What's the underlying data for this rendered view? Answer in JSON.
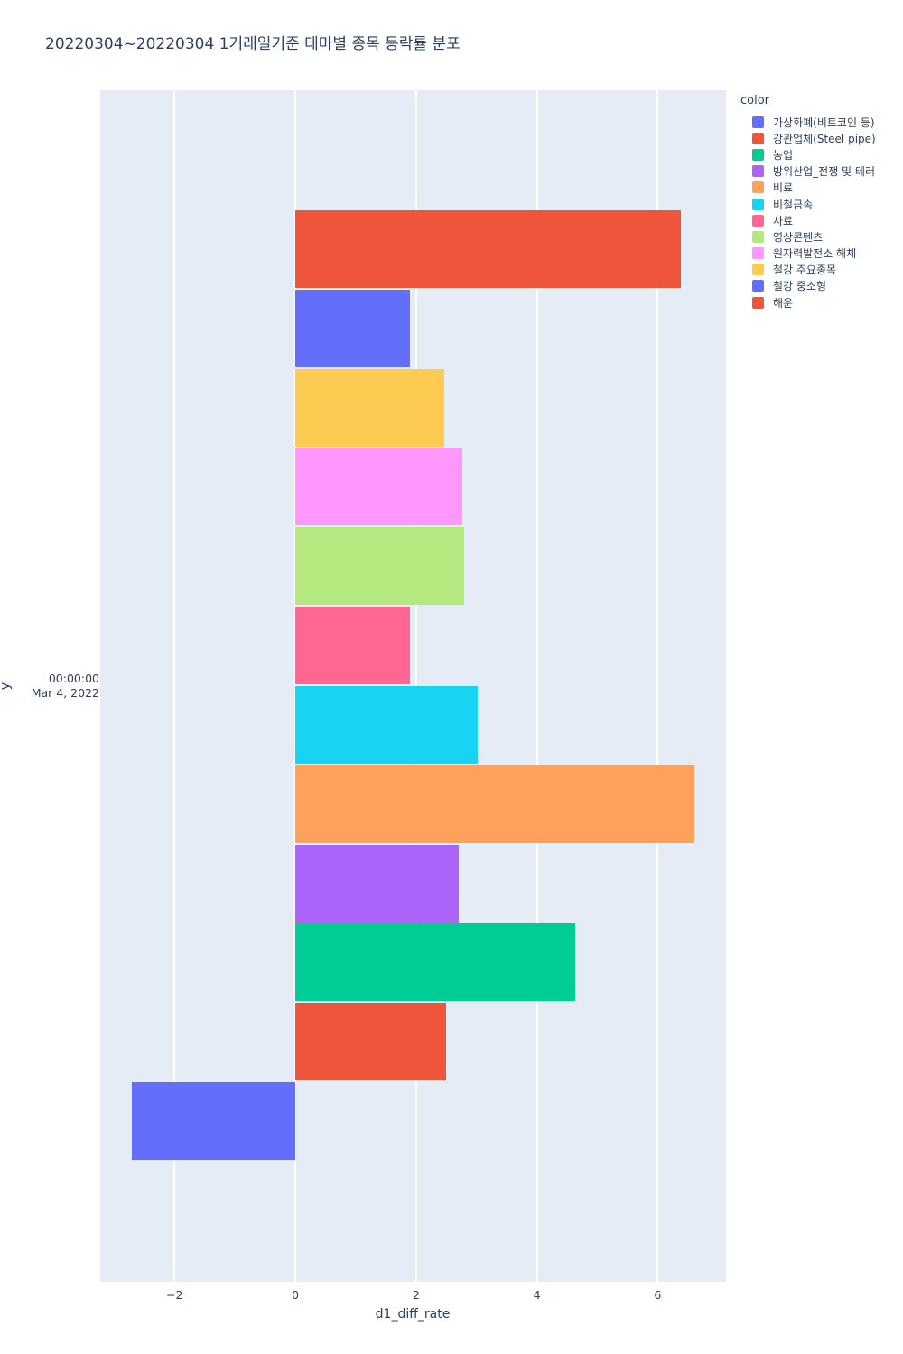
{
  "chart_data": {
    "type": "bar",
    "orientation": "horizontal",
    "title": "20220304~20220304 1거래일기준 테마별 종목 등락률 분포",
    "xlabel": "d1_diff_rate",
    "ylabel": "y",
    "legend_title": "color",
    "legend_position": "right",
    "grid": true,
    "y_tick_label_lines": [
      "00:00:00",
      "Mar 4, 2022"
    ],
    "xlim": [
      -3.23,
      7.13
    ],
    "xticks": [
      {
        "value": -2,
        "label": "−2"
      },
      {
        "value": 0,
        "label": "0"
      },
      {
        "value": 2,
        "label": "2"
      },
      {
        "value": 4,
        "label": "4"
      },
      {
        "value": 6,
        "label": "6"
      }
    ],
    "colors": {
      "paper_bg": "#FFFFFF",
      "plot_bg": "#E5ECF6",
      "grid": "#FFFFFF",
      "text": "#2A3F5F"
    },
    "series": [
      {
        "name": "가상화폐(비트코인 등)",
        "color": "#636EFA",
        "value": -2.7
      },
      {
        "name": "강관업체(Steel pipe)",
        "color": "#EF553B",
        "value": 2.49
      },
      {
        "name": "농업",
        "color": "#00CC96",
        "value": 4.63
      },
      {
        "name": "방위산업_전쟁 및 테러",
        "color": "#AB63FA",
        "value": 2.7
      },
      {
        "name": "비료",
        "color": "#FFA15A",
        "value": 6.61
      },
      {
        "name": "비철금속",
        "color": "#19D3F3",
        "value": 3.02
      },
      {
        "name": "사료",
        "color": "#FF6692",
        "value": 1.9
      },
      {
        "name": "영상콘텐츠",
        "color": "#B6E880",
        "value": 2.79
      },
      {
        "name": "원자력발전소 해체",
        "color": "#FF97FF",
        "value": 2.76
      },
      {
        "name": "철강 주요종목",
        "color": "#FECB52",
        "value": 2.47
      },
      {
        "name": "철강 중소형",
        "color": "#636EFA",
        "value": 1.9
      },
      {
        "name": "해운",
        "color": "#EF553B",
        "value": 6.39
      }
    ]
  }
}
